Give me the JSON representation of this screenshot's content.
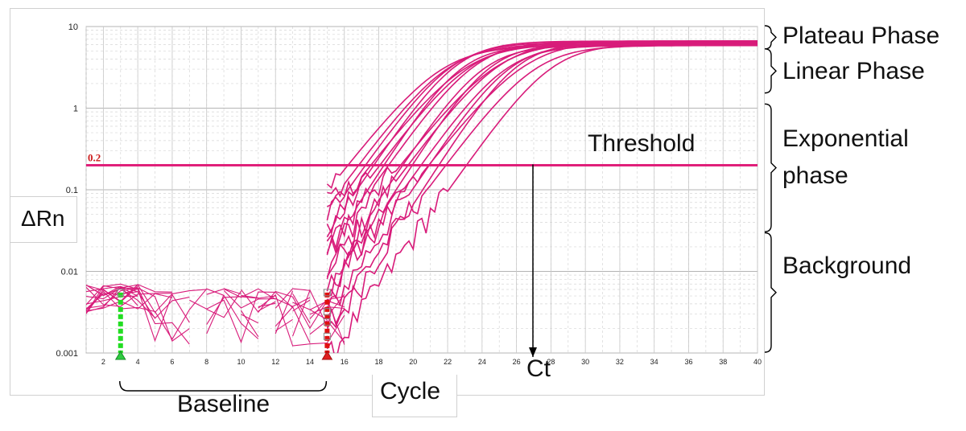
{
  "chart_data": {
    "type": "line",
    "title": "",
    "xlabel": "Cycle",
    "ylabel": "ΔRn",
    "yscale": "log",
    "xlim": [
      1,
      40
    ],
    "ylim": [
      0.001,
      10
    ],
    "x_ticks": [
      2,
      4,
      6,
      8,
      10,
      12,
      14,
      16,
      18,
      20,
      22,
      24,
      26,
      28,
      30,
      32,
      34,
      36,
      38,
      40
    ],
    "y_ticks": [
      "0.001",
      "0.01",
      "0.1",
      "1",
      "10"
    ],
    "grid": true,
    "threshold": {
      "value": 0.2,
      "label": "0.2",
      "text": "Threshold",
      "color": "#e0207a"
    },
    "ct_label": "Ct",
    "ct_cycle": 27,
    "baseline": {
      "start": 3,
      "end": 15,
      "label": "Baseline"
    },
    "curve_color": "#d81b7a",
    "curve_midpoints": [
      21.6,
      22.0,
      22.2,
      22.5,
      22.7,
      23.0,
      23.3,
      23.6,
      24.0,
      24.4,
      24.8,
      25.0,
      25.3,
      25.6,
      26.0,
      26.5,
      27.0,
      28.0
    ],
    "plateau_value": 6.5,
    "phases": [
      {
        "name": "Plateau Phase",
        "ymin": 5.2,
        "ymax": 10
      },
      {
        "name": "Linear Phase",
        "ymin": 1.5,
        "ymax": 5.2
      },
      {
        "name": "Exponential phase",
        "ymin": 0.03,
        "ymax": 1.1
      },
      {
        "name": "Background",
        "ymin": 0.001,
        "ymax": 0.029
      }
    ]
  }
}
